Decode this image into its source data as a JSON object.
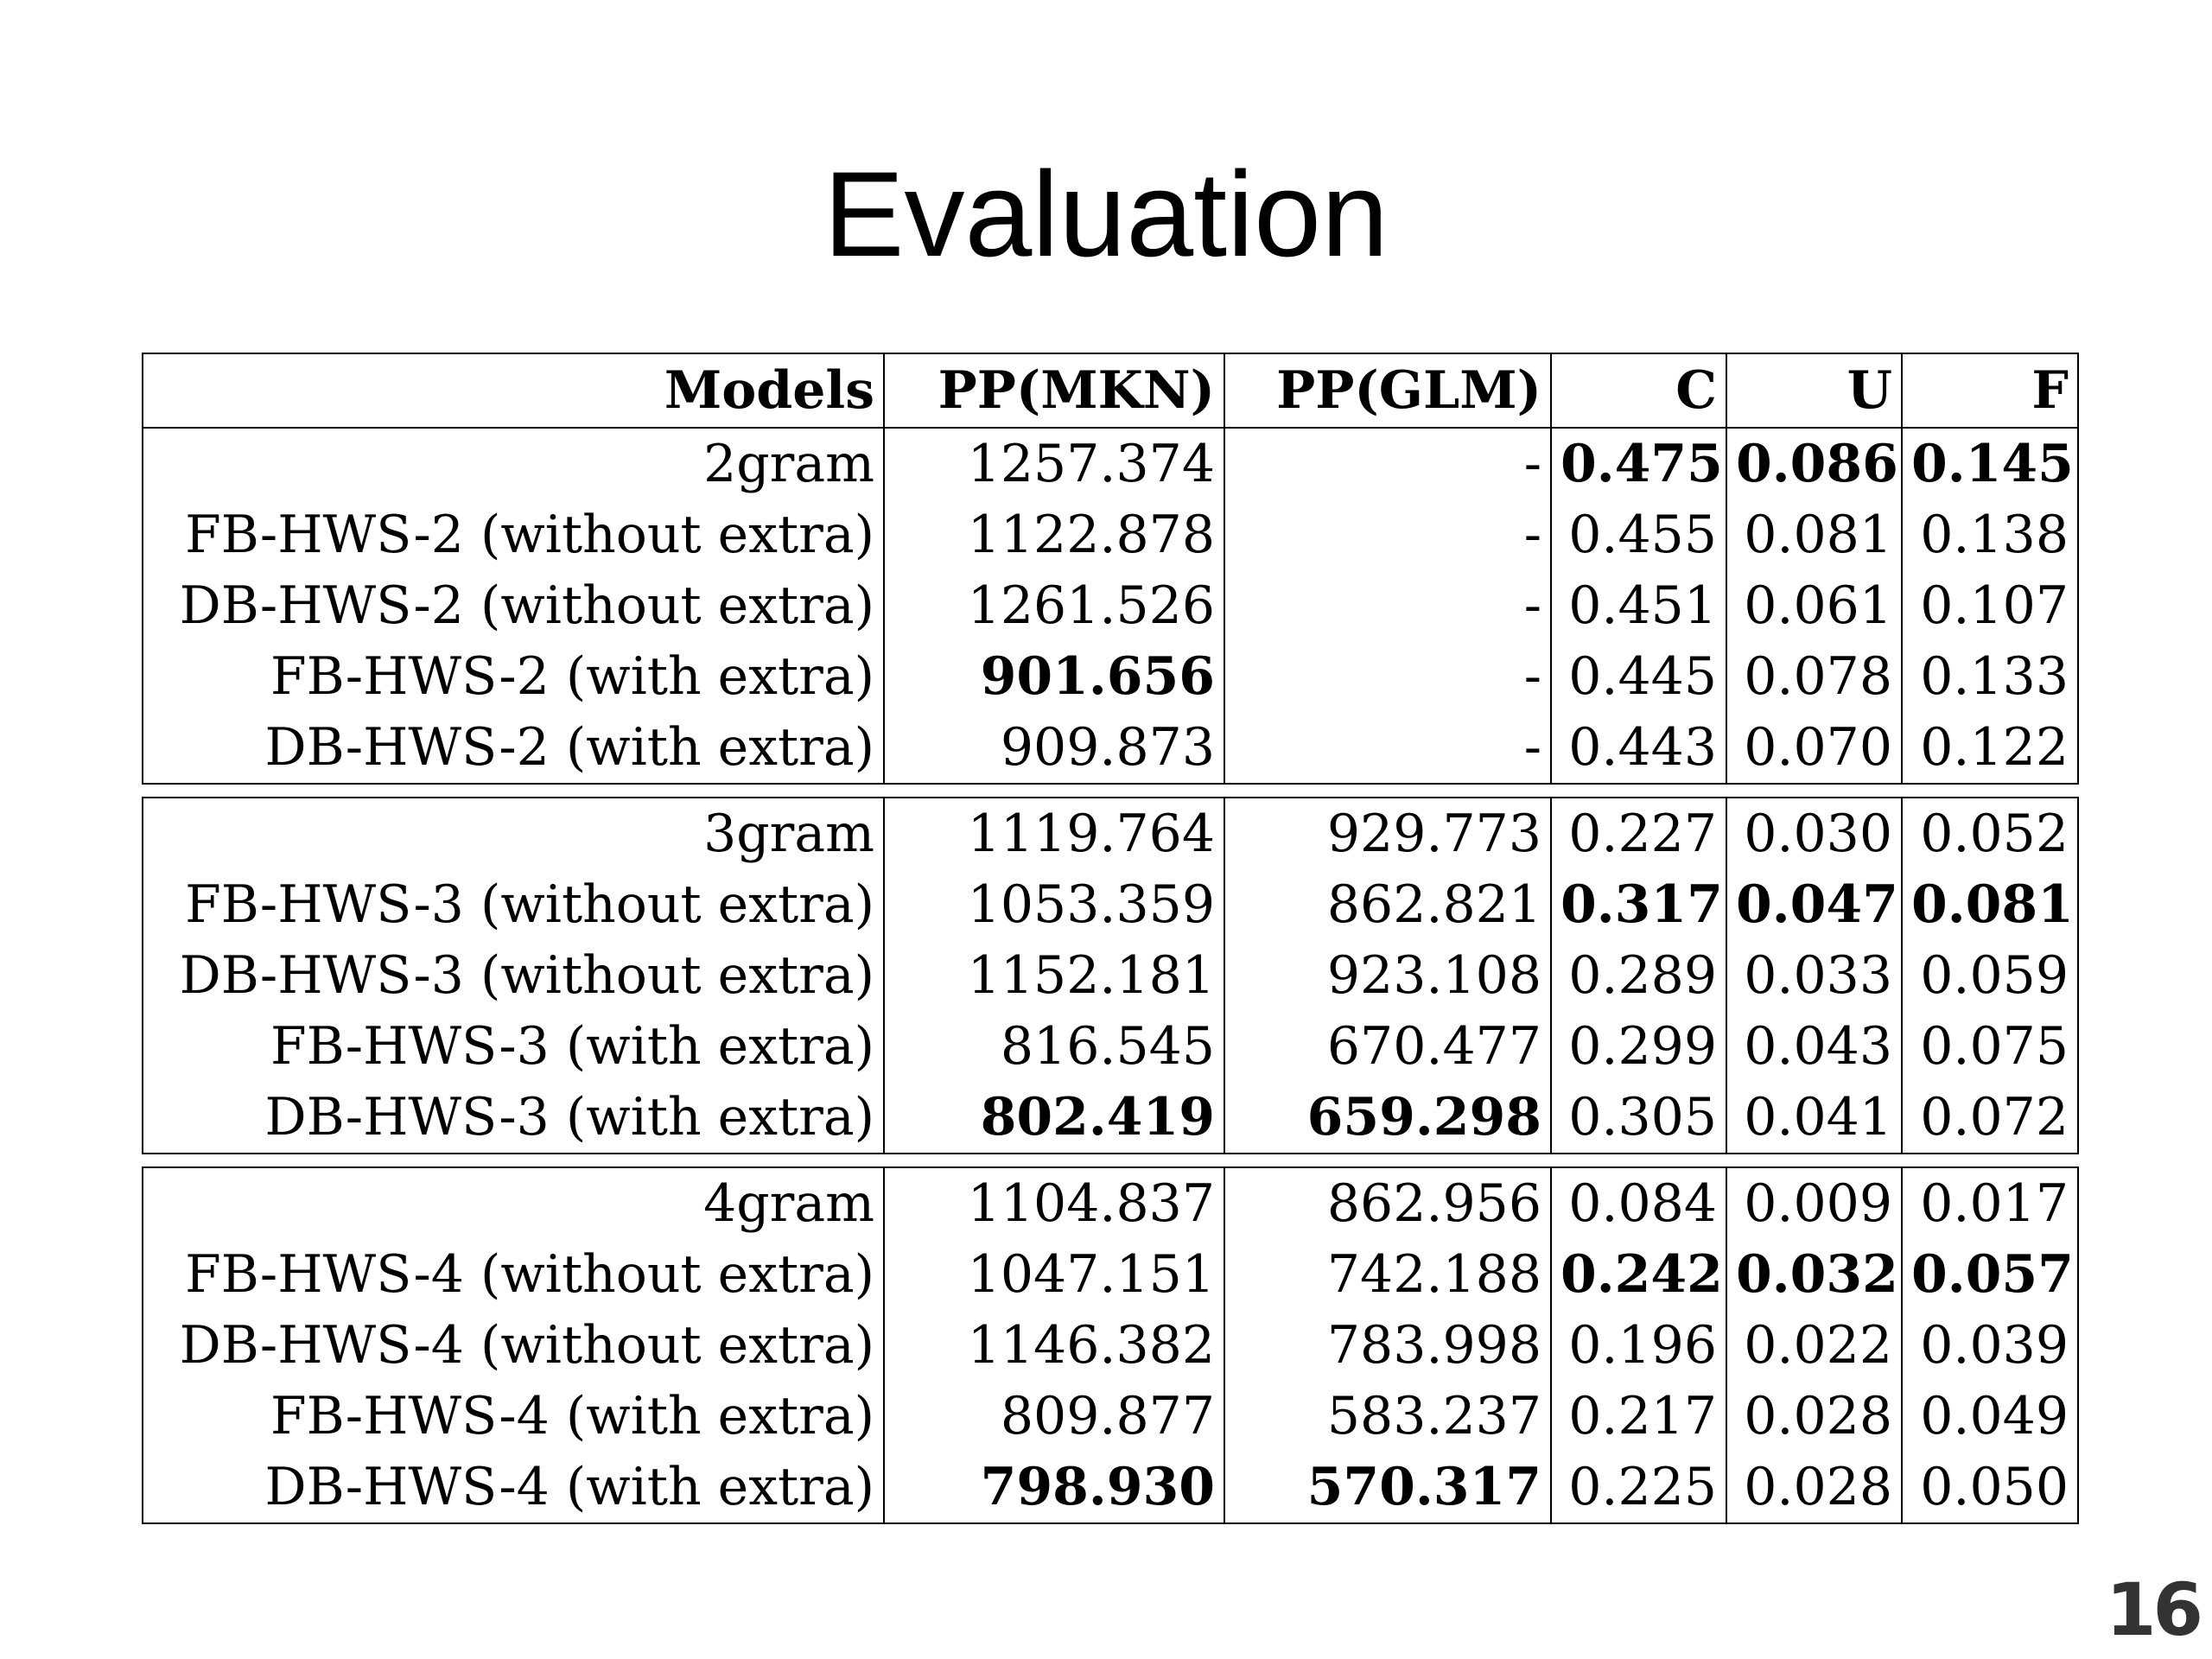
{
  "title": "Evaluation",
  "page_number": "16",
  "table": {
    "headers": [
      "Models",
      "PP(MKN)",
      "PP(GLM)",
      "C",
      "U",
      "F"
    ],
    "groups": [
      {
        "rows": [
          {
            "model": "2gram",
            "pp_mkn": "1257.374",
            "pp_glm": "-",
            "c": "0.475",
            "u": "0.086",
            "f": "0.145"
          },
          {
            "model": "FB-HWS-2 (without extra)",
            "pp_mkn": "1122.878",
            "pp_glm": "-",
            "c": "0.455",
            "u": "0.081",
            "f": "0.138"
          },
          {
            "model": "DB-HWS-2 (without extra)",
            "pp_mkn": "1261.526",
            "pp_glm": "-",
            "c": "0.451",
            "u": "0.061",
            "f": "0.107"
          },
          {
            "model": "FB-HWS-2 (with extra)",
            "pp_mkn": "901.656",
            "pp_glm": "-",
            "c": "0.445",
            "u": "0.078",
            "f": "0.133"
          },
          {
            "model": "DB-HWS-2 (with extra)",
            "pp_mkn": "909.873",
            "pp_glm": "-",
            "c": "0.443",
            "u": "0.070",
            "f": "0.122"
          }
        ]
      },
      {
        "rows": [
          {
            "model": "3gram",
            "pp_mkn": "1119.764",
            "pp_glm": "929.773",
            "c": "0.227",
            "u": "0.030",
            "f": "0.052"
          },
          {
            "model": "FB-HWS-3 (without extra)",
            "pp_mkn": "1053.359",
            "pp_glm": "862.821",
            "c": "0.317",
            "u": "0.047",
            "f": "0.081"
          },
          {
            "model": "DB-HWS-3 (without extra)",
            "pp_mkn": "1152.181",
            "pp_glm": "923.108",
            "c": "0.289",
            "u": "0.033",
            "f": "0.059"
          },
          {
            "model": "FB-HWS-3 (with extra)",
            "pp_mkn": "816.545",
            "pp_glm": "670.477",
            "c": "0.299",
            "u": "0.043",
            "f": "0.075"
          },
          {
            "model": "DB-HWS-3 (with extra)",
            "pp_mkn": "802.419",
            "pp_glm": "659.298",
            "c": "0.305",
            "u": "0.041",
            "f": "0.072"
          }
        ]
      },
      {
        "rows": [
          {
            "model": "4gram",
            "pp_mkn": "1104.837",
            "pp_glm": "862.956",
            "c": "0.084",
            "u": "0.009",
            "f": "0.017"
          },
          {
            "model": "FB-HWS-4 (without extra)",
            "pp_mkn": "1047.151",
            "pp_glm": "742.188",
            "c": "0.242",
            "u": "0.032",
            "f": "0.057"
          },
          {
            "model": "DB-HWS-4 (without extra)",
            "pp_mkn": "1146.382",
            "pp_glm": "783.998",
            "c": "0.196",
            "u": "0.022",
            "f": "0.039"
          },
          {
            "model": "FB-HWS-4 (with extra)",
            "pp_mkn": "809.877",
            "pp_glm": "583.237",
            "c": "0.217",
            "u": "0.028",
            "f": "0.049"
          },
          {
            "model": "DB-HWS-4 (with extra)",
            "pp_mkn": "798.930",
            "pp_glm": "570.317",
            "c": "0.225",
            "u": "0.028",
            "f": "0.050"
          }
        ]
      }
    ]
  }
}
